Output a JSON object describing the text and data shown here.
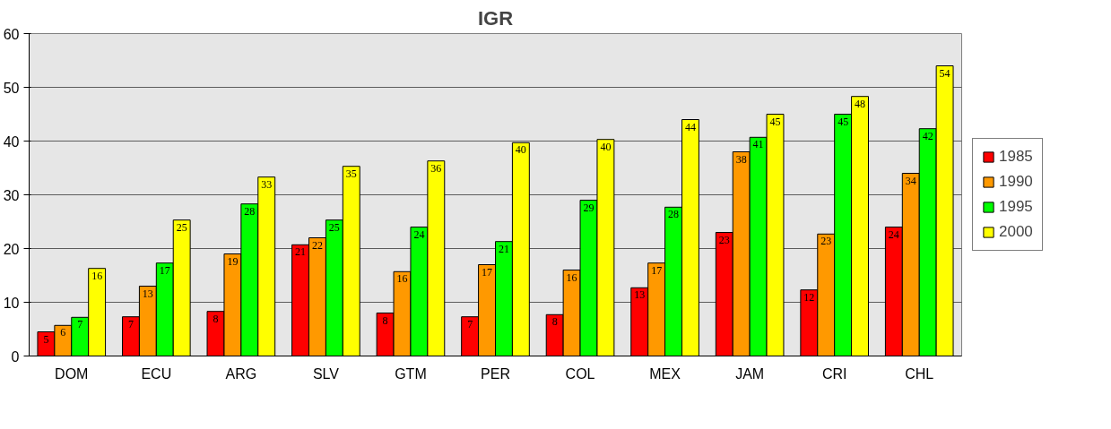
{
  "chart_data": {
    "type": "bar",
    "title": "IGR",
    "categories": [
      "DOM",
      "ECU",
      "ARG",
      "SLV",
      "GTM",
      "PER",
      "COL",
      "MEX",
      "JAM",
      "CRI",
      "CHL"
    ],
    "series": [
      {
        "name": "1985",
        "color": "#ff0000",
        "values": [
          4.5,
          7.3,
          8.3,
          20.7,
          8,
          7.3,
          7.7,
          12.7,
          23,
          12.3,
          24
        ],
        "value_labels": [
          "5",
          "7",
          "8",
          "21",
          "8",
          "7",
          "8",
          "13",
          "23",
          "12",
          "24"
        ]
      },
      {
        "name": "1990",
        "color": "#ff9900",
        "values": [
          5.7,
          13,
          19,
          22,
          15.7,
          17,
          16,
          17.3,
          38,
          22.7,
          34
        ],
        "value_labels": [
          "6",
          "13",
          "19",
          "22",
          "16",
          "17",
          "16",
          "17",
          "38",
          "23",
          "34"
        ]
      },
      {
        "name": "1995",
        "color": "#00ff00",
        "values": [
          7.2,
          17.3,
          28.3,
          25.3,
          24,
          21.3,
          29,
          27.7,
          40.7,
          45,
          42.3
        ],
        "value_labels": [
          "7",
          "17",
          "28",
          "25",
          "24",
          "21",
          "29",
          "28",
          "41",
          "45",
          "42"
        ]
      },
      {
        "name": "2000",
        "color": "#ffff00",
        "values": [
          16.3,
          25.3,
          33.3,
          35.3,
          36.3,
          39.7,
          40.3,
          44,
          45,
          48.3,
          54
        ],
        "value_labels": [
          "16",
          "25",
          "33",
          "35",
          "36",
          "40",
          "40",
          "44",
          "45",
          "48",
          "54"
        ]
      }
    ],
    "ylim": [
      0,
      60
    ],
    "yticks": [
      0,
      10,
      20,
      30,
      40,
      50,
      60
    ],
    "grid": "y",
    "legend": "right"
  }
}
